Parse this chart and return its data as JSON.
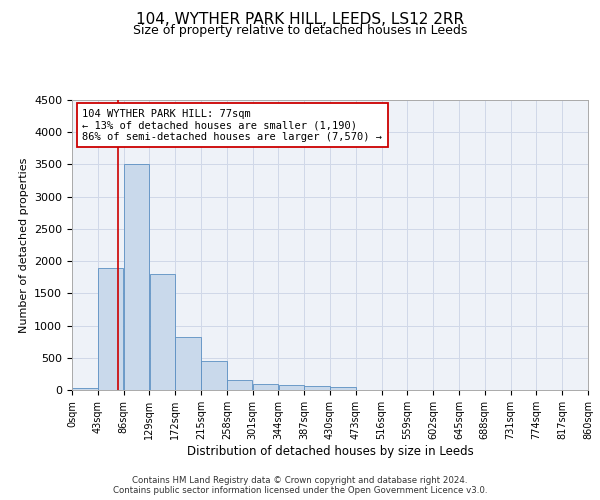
{
  "title": "104, WYTHER PARK HILL, LEEDS, LS12 2RR",
  "subtitle": "Size of property relative to detached houses in Leeds",
  "xlabel": "Distribution of detached houses by size in Leeds",
  "ylabel": "Number of detached properties",
  "bin_edges": [
    0,
    43,
    86,
    129,
    172,
    215,
    258,
    301,
    344,
    387,
    430,
    473,
    516,
    559,
    602,
    645,
    688,
    731,
    774,
    817,
    860
  ],
  "counts": [
    30,
    1900,
    3500,
    1800,
    830,
    450,
    160,
    100,
    70,
    55,
    50,
    0,
    0,
    0,
    0,
    0,
    0,
    0,
    0,
    0
  ],
  "bar_color": "#c9d9eb",
  "bar_edge_color": "#5a8fc2",
  "subject_size": 77,
  "subject_label": "104 WYTHER PARK HILL: 77sqm",
  "annotation_line1": "← 13% of detached houses are smaller (1,190)",
  "annotation_line2": "86% of semi-detached houses are larger (7,570) →",
  "vline_color": "#cc0000",
  "box_edge_color": "#cc0000",
  "grid_color": "#d0d8e8",
  "background_color": "#eef2f8",
  "ylim": [
    0,
    4500
  ],
  "yticks": [
    0,
    500,
    1000,
    1500,
    2000,
    2500,
    3000,
    3500,
    4000,
    4500
  ],
  "footer_line1": "Contains HM Land Registry data © Crown copyright and database right 2024.",
  "footer_line2": "Contains public sector information licensed under the Open Government Licence v3.0."
}
